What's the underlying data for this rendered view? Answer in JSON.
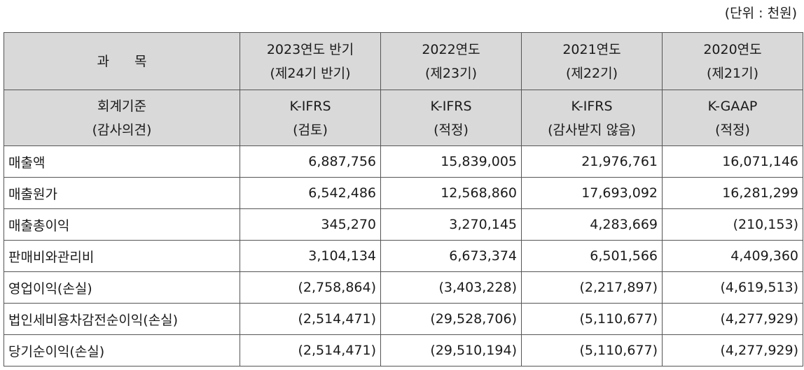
{
  "unit_note": "(단위 : 천원)",
  "header": {
    "subject_left": "과",
    "subject_right": "목",
    "periods": [
      {
        "line1": "2023연도 반기",
        "line2": "(제24기 반기)"
      },
      {
        "line1": "2022연도",
        "line2": "(제23기)"
      },
      {
        "line1": "2021연도",
        "line2": "(제22기)"
      },
      {
        "line1": "2020연도",
        "line2": "(제21기)"
      }
    ],
    "standard_label_line1": "회계기준",
    "standard_label_line2": "(감사의견)",
    "standards": [
      {
        "line1": "K-IFRS",
        "line2": "(검토)"
      },
      {
        "line1": "K-IFRS",
        "line2": "(적정)"
      },
      {
        "line1": "K-IFRS",
        "line2": "(감사받지 않음)"
      },
      {
        "line1": "K-GAAP",
        "line2": "(적정)"
      }
    ]
  },
  "rows": [
    {
      "label": "매출액",
      "values": [
        "6,887,756",
        "15,839,005",
        "21,976,761",
        "16,071,146"
      ]
    },
    {
      "label": "매출원가",
      "values": [
        "6,542,486",
        "12,568,860",
        "17,693,092",
        "16,281,299"
      ]
    },
    {
      "label": "매출총이익",
      "values": [
        "345,270",
        "3,270,145",
        "4,283,669",
        "(210,153)"
      ]
    },
    {
      "label": "판매비와관리비",
      "values": [
        "3,104,134",
        "6,673,374",
        "6,501,566",
        "4,409,360"
      ]
    },
    {
      "label": "영업이익(손실)",
      "values": [
        "(2,758,864)",
        "(3,403,228)",
        "(2,217,897)",
        "(4,619,513)"
      ]
    },
    {
      "label": "법인세비용차감전순이익(손실)",
      "values": [
        "(2,514,471)",
        "(29,528,706)",
        "(5,110,677)",
        "(4,277,929)"
      ]
    },
    {
      "label": "당기순이익(손실)",
      "values": [
        "(2,514,471)",
        "(29,510,194)",
        "(5,110,677)",
        "(4,277,929)"
      ]
    }
  ]
}
